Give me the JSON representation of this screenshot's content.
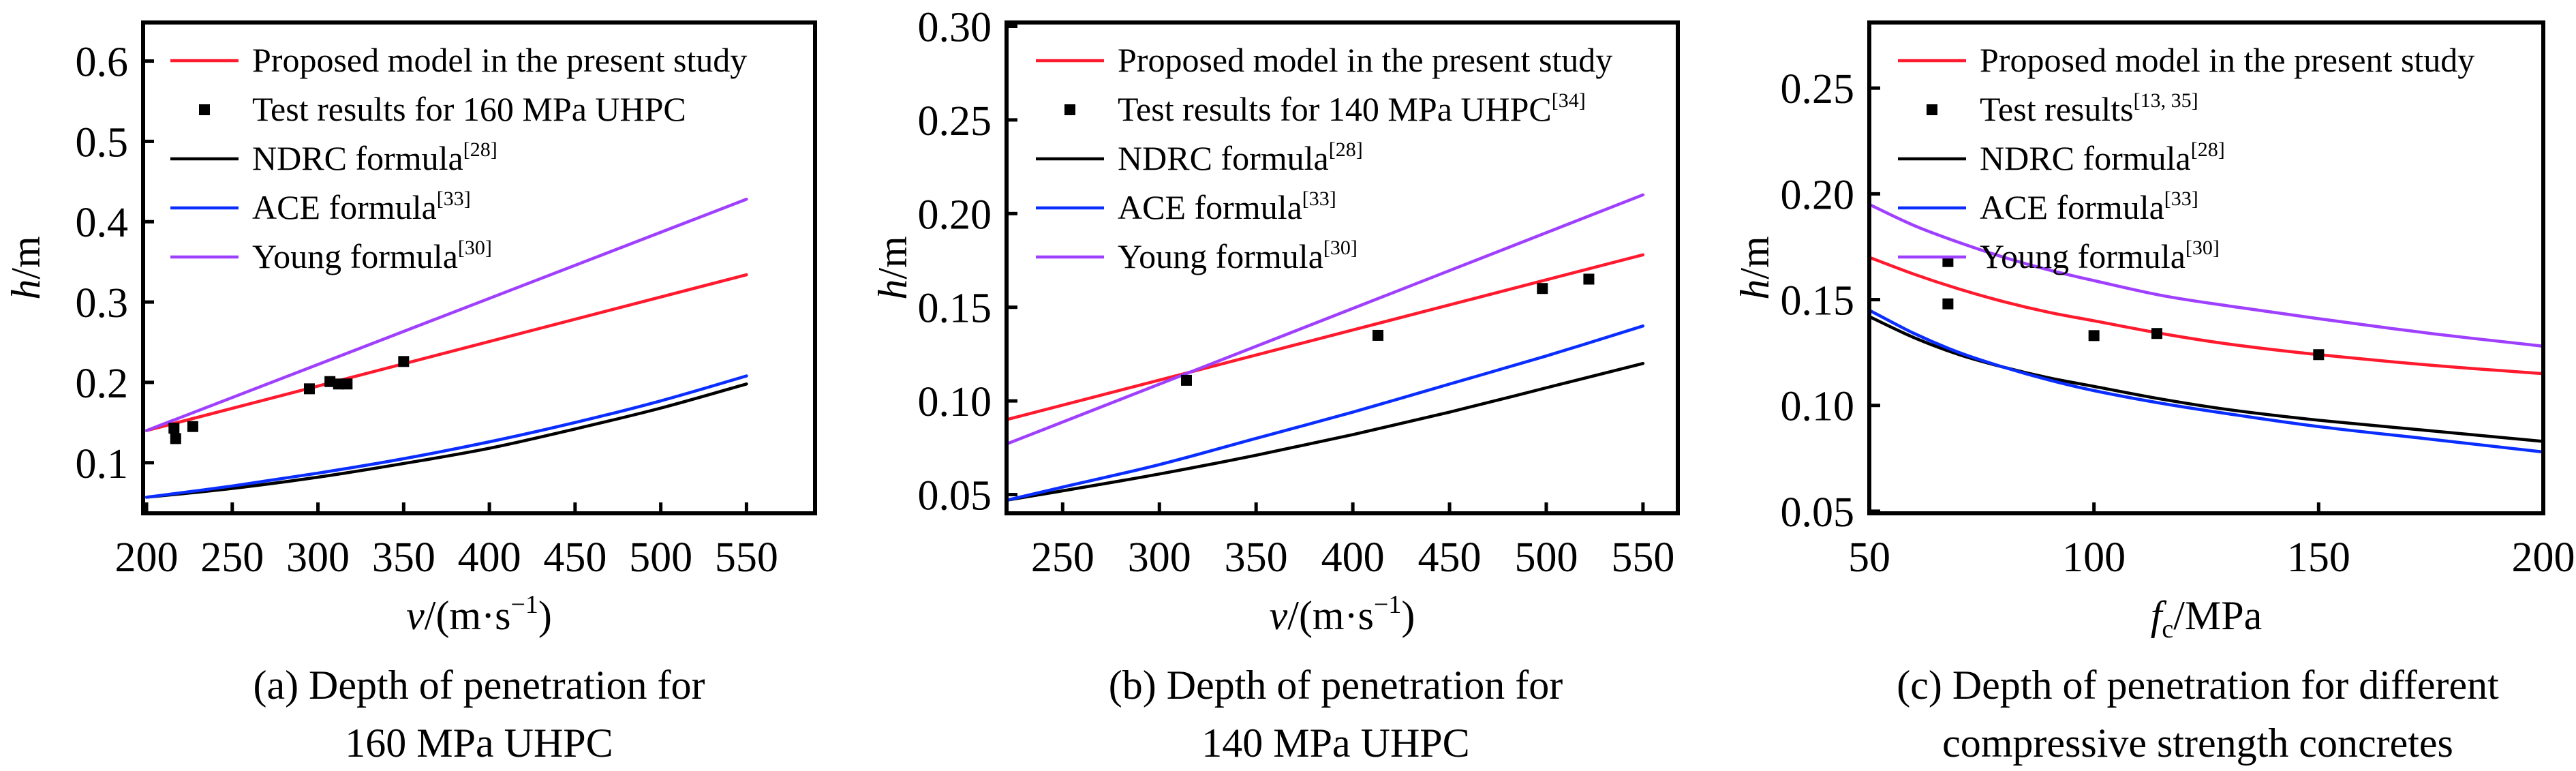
{
  "chart_data": [
    {
      "id": "a",
      "type": "line",
      "caption_lines": [
        "(a) Depth of penetration for",
        "160 MPa UHPC"
      ],
      "xlabel": "v/(m·s⁻¹)",
      "xlabel_parts": {
        "var": "v",
        "rest": "/(m·s",
        "sup": "−1",
        "close": ")"
      },
      "ylabel": "h/m",
      "ylabel_parts": {
        "var": "h",
        "rest": "/m"
      },
      "xlim": [
        198,
        590
      ],
      "ylim": [
        0.037,
        0.648
      ],
      "xticks": [
        200,
        250,
        300,
        350,
        400,
        450,
        500,
        550
      ],
      "xtick_labels": [
        "200",
        "250",
        "300",
        "350",
        "400",
        "450",
        "500",
        "550"
      ],
      "yticks": [
        0.1,
        0.2,
        0.3,
        0.4,
        0.5,
        0.6
      ],
      "ytick_labels": [
        "0.1",
        "0.2",
        "0.3",
        "0.4",
        "0.5",
        "0.6"
      ],
      "legend_position": "top-left",
      "legend": [
        {
          "label": "Proposed model in the present study",
          "sup": "",
          "kind": "line",
          "color": "#ff1a2e"
        },
        {
          "label": "Test results for 160 MPa UHPC",
          "sup": "",
          "kind": "marker",
          "color": "#000000"
        },
        {
          "label": "NDRC formula",
          "sup": "[28]",
          "kind": "line",
          "color": "#000000"
        },
        {
          "label": "ACE formula",
          "sup": "[33]",
          "kind": "line",
          "color": "#0a2eff"
        },
        {
          "label": "Young formula",
          "sup": "[30]",
          "kind": "line",
          "color": "#a040ff"
        }
      ],
      "series": [
        {
          "name": "Proposed model in the present study",
          "color": "#ff1a2e",
          "x": [
            200,
            550
          ],
          "y": [
            0.14,
            0.334
          ]
        },
        {
          "name": "NDRC formula",
          "color": "#000000",
          "x": [
            200,
            250,
            300,
            350,
            400,
            450,
            500,
            550
          ],
          "y": [
            0.057,
            0.068,
            0.082,
            0.099,
            0.118,
            0.142,
            0.168,
            0.198
          ]
        },
        {
          "name": "ACE formula",
          "color": "#0a2eff",
          "x": [
            200,
            250,
            300,
            350,
            400,
            450,
            500,
            550
          ],
          "y": [
            0.057,
            0.071,
            0.087,
            0.105,
            0.126,
            0.15,
            0.177,
            0.208
          ]
        },
        {
          "name": "Young formula",
          "color": "#a040ff",
          "x": [
            200,
            550
          ],
          "y": [
            0.14,
            0.428
          ]
        }
      ],
      "points": {
        "name": "Test results for 160 MPa UHPC",
        "x": [
          216,
          217,
          227,
          295,
          307,
          312,
          317,
          350
        ],
        "y": [
          0.143,
          0.13,
          0.145,
          0.192,
          0.201,
          0.198,
          0.198,
          0.226
        ]
      }
    },
    {
      "id": "b",
      "type": "line",
      "caption_lines": [
        "(b) Depth of penetration for",
        "140 MPa UHPC"
      ],
      "xlabel": "v/(m·s⁻¹)",
      "xlabel_parts": {
        "var": "v",
        "rest": "/(m·s",
        "sup": "−1",
        "close": ")"
      },
      "ylabel": "h/m",
      "ylabel_parts": {
        "var": "h",
        "rest": "/m"
      },
      "xlim": [
        221,
        568
      ],
      "ylim": [
        0.04,
        0.302
      ],
      "xticks": [
        250,
        300,
        350,
        400,
        450,
        500,
        550
      ],
      "xtick_labels": [
        "250",
        "300",
        "350",
        "400",
        "450",
        "500",
        "550"
      ],
      "yticks": [
        0.05,
        0.1,
        0.15,
        0.2,
        0.25,
        0.3
      ],
      "ytick_labels": [
        "0.05",
        "0.10",
        "0.15",
        "0.20",
        "0.25",
        "0.30"
      ],
      "legend_position": "top-left",
      "legend": [
        {
          "label": "Proposed model in the present study",
          "sup": "",
          "kind": "line",
          "color": "#ff1a2e"
        },
        {
          "label": "Test results for 140 MPa UHPC",
          "sup": "[34]",
          "kind": "marker",
          "color": "#000000"
        },
        {
          "label": "NDRC formula",
          "sup": "[28]",
          "kind": "line",
          "color": "#000000"
        },
        {
          "label": "ACE formula",
          "sup": "[33]",
          "kind": "line",
          "color": "#0a2eff"
        },
        {
          "label": "Young formula",
          "sup": "[30]",
          "kind": "line",
          "color": "#a040ff"
        }
      ],
      "series": [
        {
          "name": "Proposed model in the present study",
          "color": "#ff1a2e",
          "x": [
            221,
            550
          ],
          "y": [
            0.09,
            0.178
          ]
        },
        {
          "name": "NDRC formula",
          "color": "#000000",
          "x": [
            221,
            250,
            300,
            350,
            400,
            450,
            500,
            550
          ],
          "y": [
            0.047,
            0.052,
            0.061,
            0.071,
            0.082,
            0.094,
            0.107,
            0.12
          ]
        },
        {
          "name": "ACE formula",
          "color": "#0a2eff",
          "x": [
            221,
            250,
            300,
            350,
            400,
            450,
            500,
            550
          ],
          "y": [
            0.047,
            0.054,
            0.066,
            0.08,
            0.094,
            0.109,
            0.124,
            0.14
          ]
        },
        {
          "name": "Young formula",
          "color": "#a040ff",
          "x": [
            221,
            550
          ],
          "y": [
            0.077,
            0.21
          ]
        }
      ],
      "points": {
        "name": "Test results for 140 MPa UHPC",
        "x": [
          314,
          413,
          498,
          522
        ],
        "y": [
          0.111,
          0.135,
          0.16,
          0.165
        ]
      }
    },
    {
      "id": "c",
      "type": "line",
      "caption_lines": [
        "(c) Depth of penetration for different",
        "compressive strength concretes"
      ],
      "xlabel": "fc/MPa",
      "xlabel_parts": {
        "var": "f",
        "sub": "c",
        "rest": "/MPa"
      },
      "ylabel": "h/m",
      "ylabel_parts": {
        "var": "h",
        "rest": "/m"
      },
      "xlim": [
        50,
        200
      ],
      "ylim": [
        0.049,
        0.281
      ],
      "xticks": [
        50,
        100,
        150,
        200
      ],
      "xtick_labels": [
        "50",
        "100",
        "150",
        "200"
      ],
      "yticks": [
        0.05,
        0.1,
        0.15,
        0.2,
        0.25
      ],
      "ytick_labels": [
        "0.05",
        "0.10",
        "0.15",
        "0.20",
        "0.25"
      ],
      "legend_position": "top-left",
      "legend": [
        {
          "label": "Proposed model in the present study",
          "sup": "",
          "kind": "line",
          "color": "#ff1a2e"
        },
        {
          "label": "Test results",
          "sup": "[13, 35]",
          "kind": "marker",
          "color": "#000000"
        },
        {
          "label": "NDRC formula",
          "sup": "[28]",
          "kind": "line",
          "color": "#000000"
        },
        {
          "label": "ACE formula",
          "sup": "[33]",
          "kind": "line",
          "color": "#0a2eff"
        },
        {
          "label": "Young formula",
          "sup": "[30]",
          "kind": "line",
          "color": "#a040ff"
        }
      ],
      "series": [
        {
          "name": "Proposed model in the present study",
          "color": "#ff1a2e",
          "x": [
            50,
            60,
            70,
            80,
            90,
            100,
            115,
            130,
            150,
            175,
            200
          ],
          "y": [
            0.17,
            0.162,
            0.155,
            0.149,
            0.144,
            0.14,
            0.134,
            0.129,
            0.124,
            0.119,
            0.115
          ]
        },
        {
          "name": "NDRC formula",
          "color": "#000000",
          "x": [
            50,
            60,
            70,
            80,
            90,
            100,
            115,
            130,
            150,
            175,
            200
          ],
          "y": [
            0.142,
            0.132,
            0.124,
            0.118,
            0.113,
            0.109,
            0.103,
            0.098,
            0.093,
            0.088,
            0.083
          ]
        },
        {
          "name": "ACE formula",
          "color": "#0a2eff",
          "x": [
            50,
            60,
            70,
            80,
            90,
            100,
            115,
            130,
            150,
            175,
            200
          ],
          "y": [
            0.145,
            0.134,
            0.125,
            0.118,
            0.112,
            0.107,
            0.101,
            0.096,
            0.09,
            0.084,
            0.078
          ]
        },
        {
          "name": "Young formula",
          "color": "#a040ff",
          "x": [
            50,
            60,
            70,
            80,
            90,
            100,
            115,
            130,
            150,
            175,
            200
          ],
          "y": [
            0.195,
            0.185,
            0.177,
            0.17,
            0.164,
            0.159,
            0.152,
            0.147,
            0.141,
            0.134,
            0.128
          ]
        }
      ],
      "points": {
        "name": "Test results",
        "x": [
          67.5,
          67.5,
          100,
          114,
          150
        ],
        "y": [
          0.168,
          0.148,
          0.133,
          0.134,
          0.124
        ]
      }
    }
  ]
}
